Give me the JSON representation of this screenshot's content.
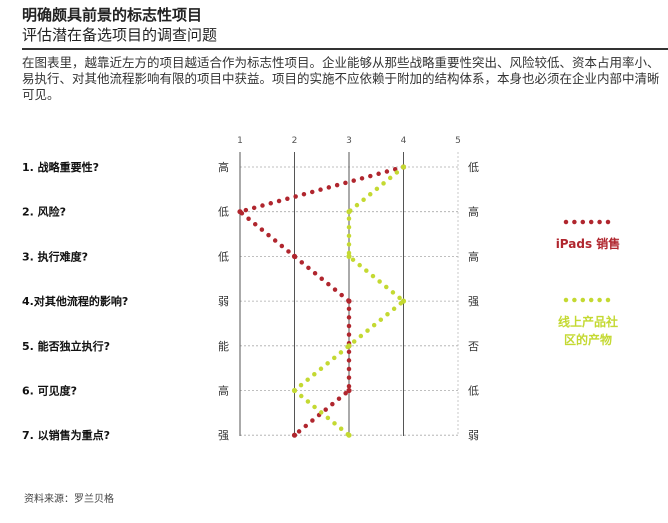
{
  "header": {
    "title": "明确颇具前景的标志性项目",
    "subtitle": "评估潜在备选项目的调查问题"
  },
  "description": "在图表里，越靠近左方的项目越适合作为标志性项目。企业能够从那些战略重要性突出、风险较低、资本占用率小、易执行、对其他流程影响有限的项目中获益。项目的实施不应依赖于附加的结构体系，本身也必须在企业内部中清晰可见。",
  "source": "资料来源：罗兰贝格",
  "chart_data": {
    "type": "line",
    "x_ticks": [
      "1",
      "2",
      "3",
      "4",
      "5"
    ],
    "xlim": [
      1,
      5
    ],
    "grid": true,
    "legend_position": "right",
    "categories": [
      "1. 战略重要性?",
      "2. 风险?",
      "3. 执行难度?",
      "4.对其他流程的影响?",
      "5. 能否独立执行?",
      "6. 可见度?",
      "7. 以销售为重点?"
    ],
    "left_labels": [
      "高",
      "低",
      "低",
      "弱",
      "能",
      "高",
      "强"
    ],
    "right_labels": [
      "低",
      "高",
      "高",
      "强",
      "否",
      "低",
      "弱"
    ],
    "series": [
      {
        "name": "iPads 销售",
        "color": "#b0262e",
        "values": [
          4,
          1,
          2,
          3,
          3,
          3,
          2
        ]
      },
      {
        "name": "线上产品社区的产物",
        "color": "#c4d932",
        "values": [
          4,
          3,
          3,
          4,
          3,
          2,
          3
        ]
      }
    ]
  }
}
